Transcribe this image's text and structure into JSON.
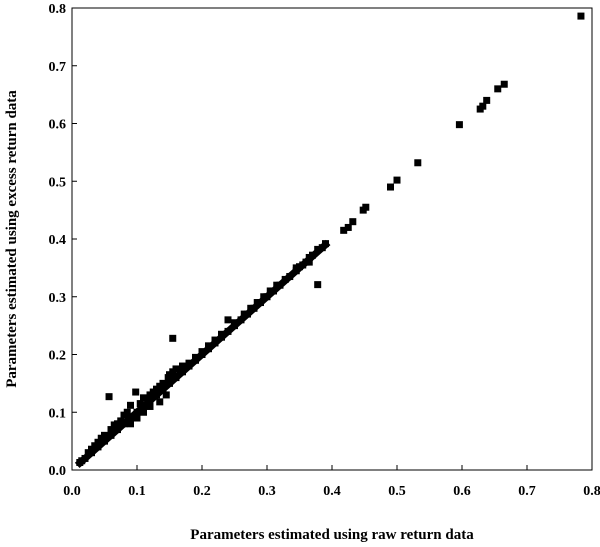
{
  "chart_data": {
    "type": "scatter",
    "title": "",
    "xlabel": "Parameters estimated using raw return data",
    "ylabel": "Parameters estimated using excess return data",
    "xlim": [
      0,
      0.8
    ],
    "ylim": [
      0,
      0.8
    ],
    "xticks": [
      "0.0",
      "0.1",
      "0.2",
      "0.3",
      "0.4",
      "0.5",
      "0.6",
      "0.7",
      "0.8"
    ],
    "yticks": [
      "0.0",
      "0.1",
      "0.2",
      "0.3",
      "0.4",
      "0.5",
      "0.6",
      "0.7",
      "0.8"
    ],
    "grid": false,
    "legend": "none",
    "marker_color": "#000000",
    "diagonal_band": {
      "from": 0.012,
      "to": 0.39,
      "relation": "y=x"
    },
    "points": [
      [
        0.783,
        0.786
      ],
      [
        0.665,
        0.668
      ],
      [
        0.655,
        0.66
      ],
      [
        0.638,
        0.64
      ],
      [
        0.632,
        0.63
      ],
      [
        0.628,
        0.625
      ],
      [
        0.596,
        0.598
      ],
      [
        0.532,
        0.532
      ],
      [
        0.5,
        0.502
      ],
      [
        0.49,
        0.49
      ],
      [
        0.452,
        0.455
      ],
      [
        0.448,
        0.45
      ],
      [
        0.432,
        0.43
      ],
      [
        0.425,
        0.42
      ],
      [
        0.418,
        0.415
      ],
      [
        0.39,
        0.392
      ],
      [
        0.385,
        0.385
      ],
      [
        0.378,
        0.382
      ],
      [
        0.378,
        0.321
      ],
      [
        0.37,
        0.372
      ],
      [
        0.365,
        0.368
      ],
      [
        0.36,
        0.36
      ],
      [
        0.355,
        0.355
      ],
      [
        0.345,
        0.345
      ],
      [
        0.335,
        0.335
      ],
      [
        0.328,
        0.33
      ],
      [
        0.32,
        0.32
      ],
      [
        0.31,
        0.31
      ],
      [
        0.3,
        0.3
      ],
      [
        0.29,
        0.29
      ],
      [
        0.28,
        0.28
      ],
      [
        0.27,
        0.27
      ],
      [
        0.26,
        0.26
      ],
      [
        0.25,
        0.25
      ],
      [
        0.24,
        0.24
      ],
      [
        0.23,
        0.23
      ],
      [
        0.22,
        0.22
      ],
      [
        0.21,
        0.21
      ],
      [
        0.2,
        0.2
      ],
      [
        0.19,
        0.19
      ],
      [
        0.18,
        0.18
      ],
      [
        0.17,
        0.17
      ],
      [
        0.16,
        0.16
      ],
      [
        0.15,
        0.15
      ],
      [
        0.14,
        0.14
      ],
      [
        0.13,
        0.13
      ],
      [
        0.12,
        0.12
      ],
      [
        0.11,
        0.11
      ],
      [
        0.1,
        0.1
      ],
      [
        0.09,
        0.09
      ],
      [
        0.08,
        0.08
      ],
      [
        0.07,
        0.07
      ],
      [
        0.06,
        0.06
      ],
      [
        0.05,
        0.05
      ],
      [
        0.04,
        0.04
      ],
      [
        0.03,
        0.03
      ],
      [
        0.02,
        0.02
      ],
      [
        0.015,
        0.016
      ],
      [
        0.012,
        0.013
      ],
      [
        0.24,
        0.26
      ],
      [
        0.25,
        0.255
      ],
      [
        0.155,
        0.228
      ],
      [
        0.148,
        0.16
      ],
      [
        0.15,
        0.165
      ],
      [
        0.16,
        0.175
      ],
      [
        0.17,
        0.18
      ],
      [
        0.155,
        0.17
      ],
      [
        0.14,
        0.15
      ],
      [
        0.135,
        0.145
      ],
      [
        0.13,
        0.14
      ],
      [
        0.125,
        0.135
      ],
      [
        0.12,
        0.13
      ],
      [
        0.11,
        0.125
      ],
      [
        0.105,
        0.115
      ],
      [
        0.098,
        0.135
      ],
      [
        0.09,
        0.112
      ],
      [
        0.085,
        0.1
      ],
      [
        0.08,
        0.095
      ],
      [
        0.075,
        0.085
      ],
      [
        0.07,
        0.08
      ],
      [
        0.065,
        0.078
      ],
      [
        0.057,
        0.127
      ],
      [
        0.06,
        0.07
      ],
      [
        0.05,
        0.06
      ],
      [
        0.045,
        0.055
      ],
      [
        0.04,
        0.048
      ],
      [
        0.035,
        0.042
      ],
      [
        0.03,
        0.036
      ],
      [
        0.025,
        0.03
      ],
      [
        0.2,
        0.205
      ],
      [
        0.21,
        0.215
      ],
      [
        0.22,
        0.225
      ],
      [
        0.18,
        0.185
      ],
      [
        0.19,
        0.195
      ],
      [
        0.23,
        0.235
      ],
      [
        0.135,
        0.118
      ],
      [
        0.145,
        0.13
      ],
      [
        0.1,
        0.09
      ],
      [
        0.09,
        0.08
      ],
      [
        0.11,
        0.1
      ],
      [
        0.12,
        0.11
      ],
      [
        0.265,
        0.27
      ],
      [
        0.275,
        0.28
      ],
      [
        0.285,
        0.29
      ],
      [
        0.295,
        0.3
      ],
      [
        0.305,
        0.31
      ],
      [
        0.315,
        0.32
      ],
      [
        0.345,
        0.35
      ],
      [
        0.35,
        0.352
      ],
      [
        0.365,
        0.36
      ]
    ]
  }
}
